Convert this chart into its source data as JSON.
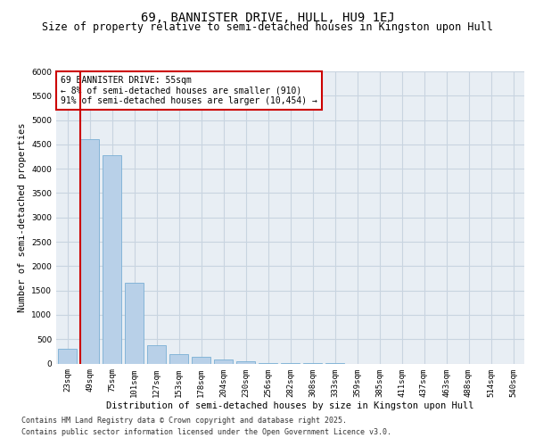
{
  "title": "69, BANNISTER DRIVE, HULL, HU9 1EJ",
  "subtitle": "Size of property relative to semi-detached houses in Kingston upon Hull",
  "xlabel": "Distribution of semi-detached houses by size in Kingston upon Hull",
  "ylabel": "Number of semi-detached properties",
  "categories": [
    "23sqm",
    "49sqm",
    "75sqm",
    "101sqm",
    "127sqm",
    "153sqm",
    "178sqm",
    "204sqm",
    "230sqm",
    "256sqm",
    "282sqm",
    "308sqm",
    "333sqm",
    "359sqm",
    "385sqm",
    "411sqm",
    "437sqm",
    "463sqm",
    "488sqm",
    "514sqm",
    "540sqm"
  ],
  "values": [
    310,
    4600,
    4280,
    1650,
    370,
    195,
    130,
    85,
    45,
    18,
    8,
    4,
    1,
    0,
    0,
    0,
    0,
    0,
    0,
    0,
    0
  ],
  "bar_color": "#b8d0e8",
  "bar_edge_color": "#7aafd4",
  "vline_color": "#cc0000",
  "ylim": [
    0,
    6000
  ],
  "yticks": [
    0,
    500,
    1000,
    1500,
    2000,
    2500,
    3000,
    3500,
    4000,
    4500,
    5000,
    5500,
    6000
  ],
  "grid_color": "#c8d4e0",
  "bg_color": "#e8eef4",
  "annotation_title": "69 BANNISTER DRIVE: 55sqm",
  "annotation_line1": "← 8% of semi-detached houses are smaller (910)",
  "annotation_line2": "91% of semi-detached houses are larger (10,454) →",
  "annotation_box_color": "#ffffff",
  "annotation_edge_color": "#cc0000",
  "footer_line1": "Contains HM Land Registry data © Crown copyright and database right 2025.",
  "footer_line2": "Contains public sector information licensed under the Open Government Licence v3.0.",
  "title_fontsize": 10,
  "subtitle_fontsize": 8.5,
  "axis_label_fontsize": 7.5,
  "tick_fontsize": 6.5,
  "annotation_fontsize": 7,
  "footer_fontsize": 6
}
